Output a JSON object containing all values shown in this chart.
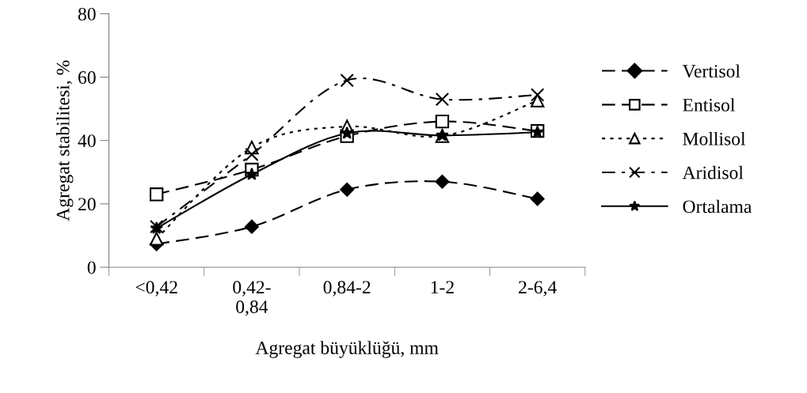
{
  "chart_data": {
    "type": "line",
    "xlabel": "Agregat büyüklüğü, mm",
    "ylabel": "Agregat stabilitesi, %",
    "categories": [
      "<0,42",
      "0,42-\n0,84",
      "0,84-2",
      "1-2",
      "2-6,4"
    ],
    "ylim": [
      0,
      80
    ],
    "yticks": [
      0,
      20,
      40,
      60,
      80
    ],
    "grid": false,
    "legend": "right",
    "series": [
      {
        "name": "Vertisol",
        "color": "#000000",
        "marker": "diamond",
        "line_style": "dashed",
        "values": [
          7.3,
          12.8,
          24.5,
          27,
          21.6
        ]
      },
      {
        "name": "Entisol",
        "color": "#000000",
        "marker": "square",
        "line_style": "dashed",
        "values": [
          23,
          30.8,
          41.4,
          46,
          43
        ]
      },
      {
        "name": "Mollisol",
        "color": "#000000",
        "marker": "triangle",
        "line_style": "dotted",
        "values": [
          9,
          37.8,
          44.4,
          41.4,
          52.6
        ]
      },
      {
        "name": "Aridisol",
        "color": "#000000",
        "marker": "cross",
        "line_style": "dashdot",
        "values": [
          12.8,
          35.6,
          59,
          53,
          54.4
        ]
      },
      {
        "name": "Ortalama",
        "color": "#000000",
        "marker": "star",
        "line_style": "solid",
        "values": [
          12.3,
          29.3,
          42.3,
          41.6,
          42.6
        ]
      }
    ]
  }
}
